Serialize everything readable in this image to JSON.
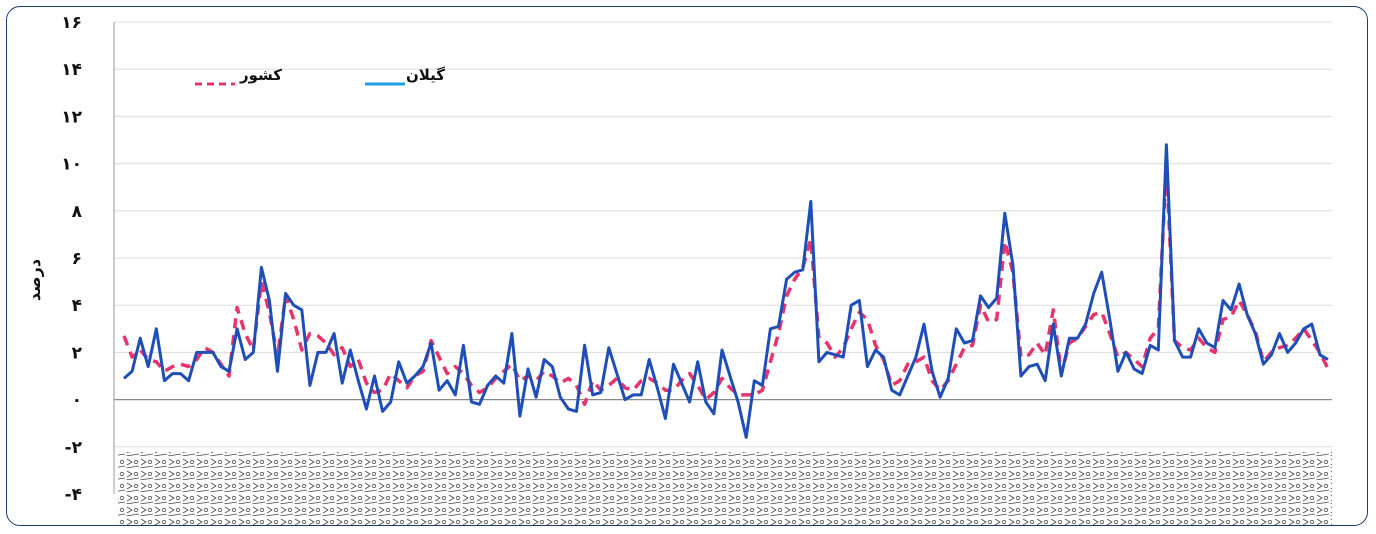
{
  "chart_data": {
    "type": "line",
    "ylabel": "درصد",
    "ylim": [
      -4,
      16
    ],
    "yticks": [
      -4,
      -2,
      0,
      2,
      4,
      6,
      8,
      10,
      12,
      14,
      16
    ],
    "ytick_labels": [
      "-۴",
      "-۲",
      "۰",
      "۲",
      "۴",
      "۶",
      "۸",
      "۱۰",
      "۱۲",
      "۱۴",
      "۱۶"
    ],
    "grid": true,
    "legend_position": "top-left",
    "series": [
      {
        "name": "گیلان",
        "style": "solid",
        "color": "#1e4fb8",
        "values": [
          0.9,
          1.2,
          2.6,
          1.4,
          3.0,
          0.8,
          1.1,
          1.1,
          0.8,
          2.0,
          2.0,
          2.0,
          1.4,
          1.2,
          3.0,
          1.7,
          2.0,
          5.6,
          4.2,
          1.2,
          4.5,
          4.0,
          3.8,
          0.6,
          2.0,
          2.0,
          2.8,
          0.7,
          2.1,
          0.8,
          -0.4,
          1.0,
          -0.5,
          -0.1,
          1.6,
          0.7,
          1.0,
          1.4,
          2.4,
          0.4,
          0.8,
          0.2,
          2.3,
          -0.1,
          -0.2,
          0.6,
          1.0,
          0.7,
          2.8,
          -0.7,
          1.3,
          0.1,
          1.7,
          1.4,
          0.1,
          -0.4,
          -0.5,
          2.3,
          0.2,
          0.3,
          2.2,
          1.1,
          0.0,
          0.2,
          0.2,
          1.7,
          0.5,
          -0.8,
          1.5,
          0.7,
          -0.1,
          1.6,
          -0.1,
          -0.6,
          2.1,
          1.0,
          -0.1,
          -1.6,
          0.8,
          0.6,
          3.0,
          3.1,
          5.1,
          5.4,
          5.5,
          8.4,
          1.6,
          2.0,
          1.9,
          1.8,
          4.0,
          4.2,
          1.4,
          2.1,
          1.8,
          0.4,
          0.2,
          1.0,
          1.8,
          3.2,
          1.2,
          0.1,
          0.9,
          3.0,
          2.4,
          2.5,
          4.4,
          3.9,
          4.3,
          7.9,
          5.7,
          1.0,
          1.4,
          1.5,
          0.8,
          3.2,
          1.0,
          2.6,
          2.6,
          3.2,
          4.5,
          5.4,
          3.4,
          1.2,
          2.0,
          1.3,
          1.1,
          2.3,
          2.1,
          10.8,
          2.5,
          1.8,
          1.8,
          3.0,
          2.4,
          2.2,
          4.2,
          3.8,
          4.9,
          3.6,
          2.8,
          1.5,
          1.9,
          2.8,
          2.0,
          2.4,
          3.0,
          3.2,
          1.9,
          1.7
        ]
      },
      {
        "name": "کشور",
        "style": "dashed",
        "color": "#e8336b",
        "values": [
          2.7,
          1.8,
          2.1,
          1.7,
          1.6,
          1.2,
          1.4,
          1.5,
          1.4,
          1.7,
          2.2,
          2.0,
          1.5,
          1.0,
          3.9,
          2.8,
          2.1,
          5.0,
          3.7,
          1.8,
          4.4,
          3.4,
          2.1,
          2.8,
          2.7,
          2.4,
          1.9,
          2.2,
          1.4,
          1.7,
          0.7,
          0.3,
          0.4,
          1.1,
          0.8,
          0.5,
          1.0,
          1.2,
          2.5,
          1.8,
          1.1,
          1.4,
          1.1,
          0.6,
          0.3,
          0.5,
          0.9,
          1.2,
          1.5,
          0.8,
          1.0,
          0.8,
          1.2,
          1.0,
          0.7,
          0.9,
          0.6,
          -0.2,
          0.8,
          0.4,
          0.6,
          0.9,
          0.5,
          0.4,
          0.8,
          0.9,
          0.7,
          0.4,
          0.4,
          0.8,
          1.1,
          0.6,
          0.0,
          0.3,
          0.9,
          0.5,
          0.2,
          0.2,
          0.2,
          0.4,
          1.6,
          2.8,
          4.4,
          5.1,
          5.6,
          6.8,
          2.6,
          2.4,
          1.8,
          2.2,
          3.0,
          3.7,
          3.4,
          2.3,
          1.7,
          0.6,
          0.8,
          1.5,
          1.6,
          1.8,
          0.8,
          0.4,
          0.8,
          1.5,
          2.2,
          2.3,
          4.0,
          3.3,
          3.4,
          6.7,
          5.4,
          1.8,
          1.9,
          2.4,
          1.9,
          3.8,
          1.1,
          2.4,
          2.6,
          3.1,
          3.6,
          3.7,
          2.8,
          1.8,
          2.0,
          1.7,
          1.4,
          2.6,
          3.0,
          10.0,
          2.5,
          2.2,
          2.1,
          2.6,
          2.2,
          2.0,
          3.4,
          3.5,
          4.2,
          3.6,
          2.9,
          1.6,
          2.0,
          2.2,
          2.3,
          2.6,
          3.0,
          2.5,
          2.0,
          1.3
        ]
      }
    ]
  }
}
